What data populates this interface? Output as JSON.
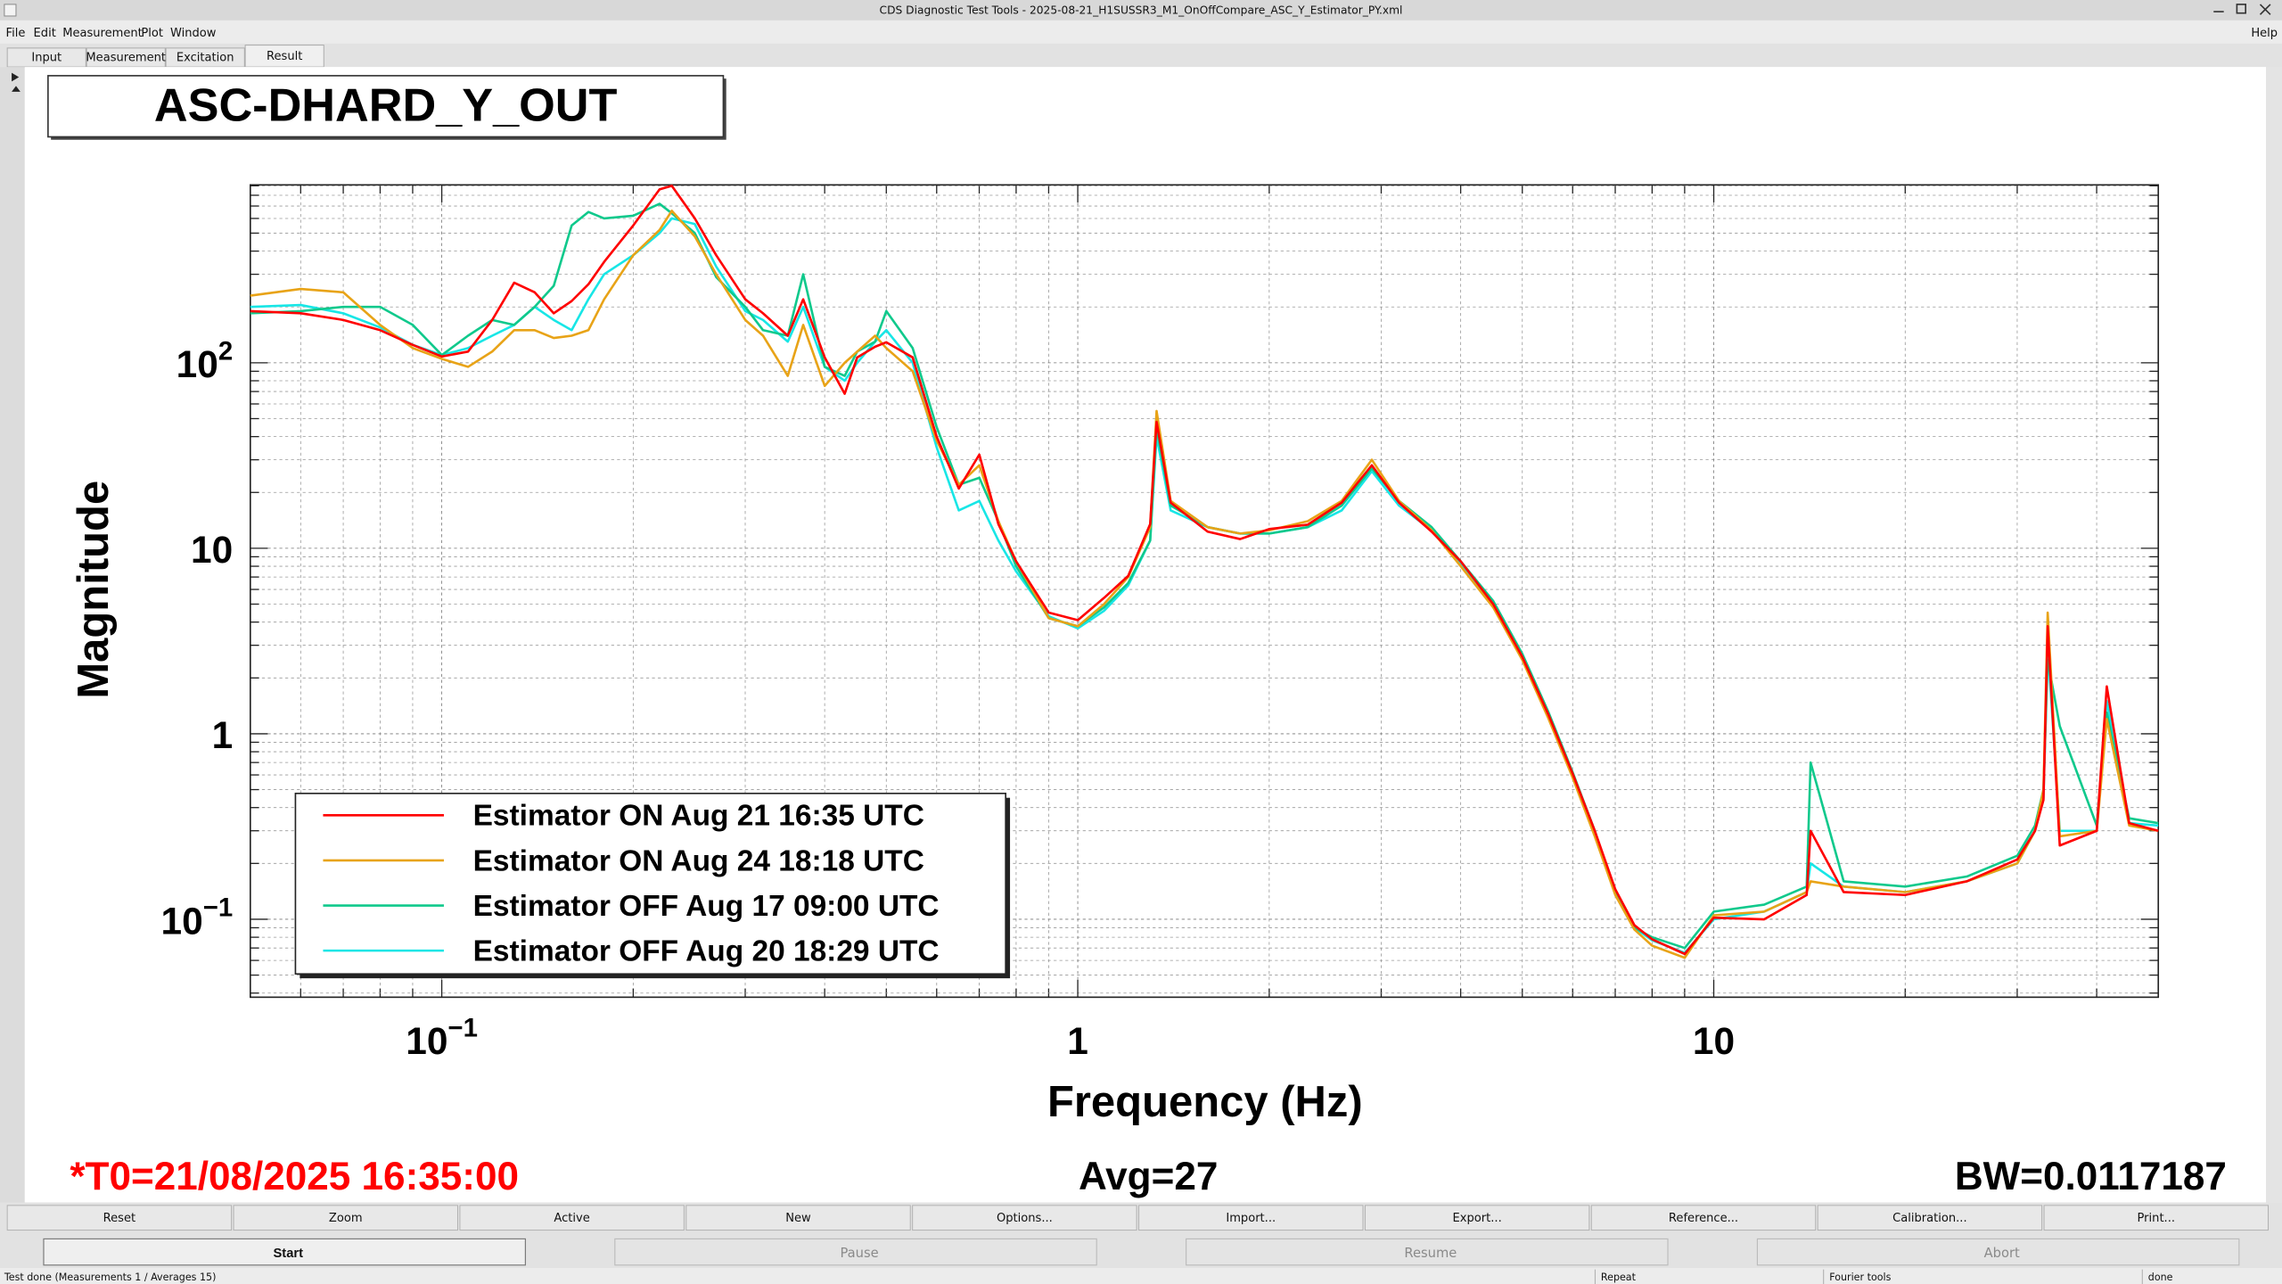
{
  "window": {
    "title": "CDS Diagnostic Test Tools - 2025-08-21_H1SUSSR3_M1_OnOffCompare_ASC_Y_Estimator_PY.xml",
    "menu": [
      "File",
      "Edit",
      "Measurement",
      "Plot",
      "Window"
    ],
    "help": "Help",
    "tabs": [
      "Input",
      "Measurement",
      "Excitation",
      "Result"
    ]
  },
  "chart_data": {
    "type": "line",
    "title": "ASC-DHARD_Y_OUT",
    "x_label": "Frequency (Hz)",
    "y_label": "Magnitude",
    "x_scale": "log",
    "y_scale": "log",
    "grid": true,
    "legend": "bottom-left",
    "xlim": [
      0.05,
      50
    ],
    "ylim": [
      0.038,
      910
    ],
    "xticks": [
      {
        "value": 0.1,
        "label": "10",
        "exponent": "−1"
      },
      1,
      10
    ],
    "yticks": [
      {
        "value": 100,
        "label": "10",
        "exponent": "2"
      },
      10,
      1,
      {
        "value": 0.1,
        "label": "10",
        "exponent": "−1"
      }
    ],
    "xminorticks": [
      0.06,
      0.07,
      0.08,
      0.09,
      0.2,
      0.3,
      0.4,
      0.5,
      0.6,
      0.7,
      0.8,
      0.9,
      2,
      3,
      4,
      5,
      6,
      7,
      8,
      9,
      20,
      30,
      40
    ],
    "yminorticks": [
      0.04,
      0.05,
      0.06,
      0.07,
      0.08,
      0.09,
      0.2,
      0.3,
      0.4,
      0.5,
      0.6,
      0.7,
      0.8,
      0.9,
      2,
      3,
      4,
      5,
      6,
      7,
      8,
      9,
      20,
      30,
      40,
      50,
      60,
      70,
      80,
      90,
      200,
      300,
      400,
      500,
      600,
      700,
      800,
      900
    ],
    "x": [
      0.05,
      0.06,
      0.07,
      0.08,
      0.09,
      0.1,
      0.11,
      0.12,
      0.13,
      0.14,
      0.15,
      0.16,
      0.17,
      0.18,
      0.2,
      0.22,
      0.23,
      0.25,
      0.27,
      0.3,
      0.32,
      0.35,
      0.37,
      0.4,
      0.43,
      0.45,
      0.48,
      0.5,
      0.55,
      0.6,
      0.65,
      0.7,
      0.75,
      0.8,
      0.9,
      1.0,
      1.1,
      1.2,
      1.3,
      1.33,
      1.4,
      1.6,
      1.8,
      2,
      2.3,
      2.6,
      2.9,
      3.2,
      3.6,
      4,
      4.5,
      5,
      5.5,
      6,
      6.5,
      7,
      7.5,
      8,
      9,
      10,
      12,
      14,
      14.2,
      16,
      20,
      25,
      30,
      32,
      33,
      33.5,
      35,
      40,
      41.5,
      45,
      50
    ],
    "series": [
      {
        "name": "Estimator ON Aug 21 16:35 UTC",
        "color": "#ff0000",
        "values": [
          190,
          185,
          170,
          150,
          125,
          108,
          115,
          170,
          270,
          240,
          185,
          215,
          265,
          350,
          550,
          860,
          900,
          600,
          380,
          220,
          185,
          140,
          220,
          107,
          68,
          107,
          122,
          129,
          107,
          40,
          21,
          32,
          13.5,
          8.5,
          4.5,
          4.1,
          5.4,
          7.1,
          13.5,
          48,
          17.6,
          12.3,
          11.2,
          12.7,
          13.4,
          17.6,
          28,
          17.6,
          12.3,
          8.5,
          5,
          2.6,
          1.26,
          0.61,
          0.3,
          0.145,
          0.093,
          0.078,
          0.065,
          0.102,
          0.1,
          0.135,
          0.3,
          0.14,
          0.135,
          0.16,
          0.21,
          0.3,
          0.44,
          3.8,
          0.25,
          0.3,
          1.8,
          0.33,
          0.3
        ]
      },
      {
        "name": "Estimator ON Aug 24 18:18 UTC",
        "color": "#e8a317",
        "values": [
          230,
          250,
          240,
          160,
          120,
          105,
          95,
          115,
          150,
          150,
          136,
          140,
          150,
          220,
          380,
          520,
          660,
          480,
          300,
          170,
          140,
          85,
          160,
          75,
          100,
          115,
          140,
          120,
          90,
          38,
          22,
          28,
          14,
          8.5,
          4.2,
          3.8,
          5,
          7,
          13,
          55,
          18,
          13,
          12,
          12.5,
          14,
          18,
          30,
          18,
          12.5,
          8,
          4.8,
          2.5,
          1.2,
          0.58,
          0.28,
          0.135,
          0.088,
          0.072,
          0.062,
          0.105,
          0.11,
          0.14,
          0.16,
          0.15,
          0.14,
          0.16,
          0.2,
          0.3,
          0.5,
          4.5,
          0.28,
          0.3,
          1.2,
          0.32,
          0.3
        ]
      },
      {
        "name": "Estimator OFF Aug 17 09:00 UTC",
        "color": "#10c98c",
        "values": [
          185,
          190,
          200,
          200,
          160,
          110,
          140,
          170,
          160,
          200,
          260,
          550,
          650,
          600,
          620,
          720,
          640,
          500,
          290,
          200,
          150,
          140,
          300,
          95,
          85,
          115,
          130,
          190,
          120,
          45,
          22,
          24,
          14,
          8,
          4.2,
          3.8,
          4.8,
          6.5,
          11,
          45,
          17,
          13,
          12,
          12,
          13,
          17,
          27,
          18,
          13,
          8.5,
          5.2,
          2.7,
          1.3,
          0.62,
          0.3,
          0.14,
          0.09,
          0.08,
          0.07,
          0.11,
          0.12,
          0.15,
          0.7,
          0.16,
          0.15,
          0.17,
          0.22,
          0.32,
          0.5,
          2.5,
          1.1,
          0.32,
          1.3,
          0.35,
          0.33
        ]
      },
      {
        "name": "Estimator OFF Aug 20 18:29 UTC",
        "color": "#18e6e6",
        "values": [
          200,
          205,
          185,
          155,
          125,
          110,
          120,
          140,
          160,
          200,
          170,
          150,
          220,
          300,
          380,
          500,
          600,
          560,
          330,
          190,
          170,
          130,
          200,
          95,
          80,
          100,
          130,
          150,
          100,
          35,
          16,
          18,
          11,
          7.5,
          4.3,
          3.7,
          4.6,
          6.3,
          11,
          40,
          16,
          13,
          12,
          12,
          13,
          16,
          26,
          17,
          12.5,
          8.2,
          5,
          2.6,
          1.25,
          0.6,
          0.29,
          0.14,
          0.09,
          0.077,
          0.066,
          0.1,
          0.11,
          0.14,
          0.2,
          0.15,
          0.14,
          0.16,
          0.2,
          0.3,
          0.45,
          3,
          0.3,
          0.3,
          1.5,
          0.33,
          0.32
        ]
      }
    ]
  },
  "info": {
    "t0": "*T0=21/08/2025 16:35:00",
    "avg": "Avg=27",
    "bw": "BW=0.0117187"
  },
  "buttons": [
    "Reset",
    "Zoom",
    "Active",
    "New",
    "Options...",
    "Import...",
    "Export...",
    "Reference...",
    "Calibration...",
    "Print..."
  ],
  "controls": [
    "Start",
    "Pause",
    "Resume",
    "Abort"
  ],
  "statusbar": [
    "Test done (Measurements 1 / Averages 15)",
    "Repeat",
    "Fourier tools",
    "done"
  ]
}
